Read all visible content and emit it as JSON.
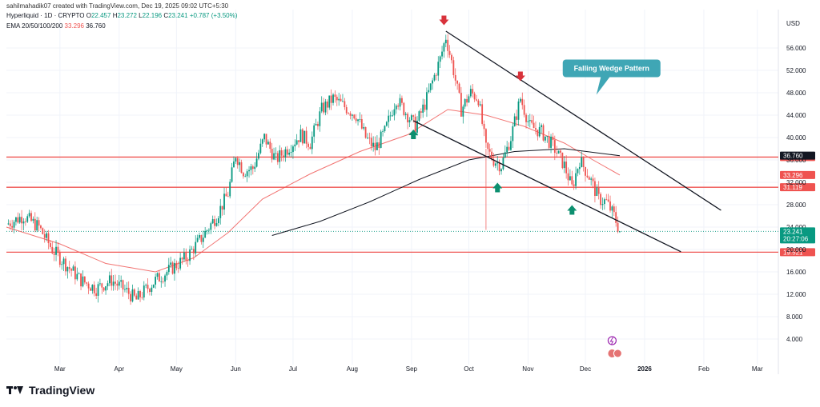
{
  "header": {
    "author_line": "sahilmahadik07 created with TradingView.com, Dec 19, 2025 09:02 UTC+5:30"
  },
  "legend": {
    "symbol": "Hyperliquid · 1D · CRYPTO",
    "o_label": "O",
    "o": "22.457",
    "h_label": "H",
    "h": "23.272",
    "l_label": "L",
    "l": "22.196",
    "c_label": "C",
    "c": "23.241",
    "change": "+0.787 (+3.50%)",
    "ema_label": "EMA 20/50/100/200",
    "ema_1": "33.296",
    "ema_2": "36.760"
  },
  "footer": {
    "brand": "TradingView"
  },
  "colors": {
    "up": "#089981",
    "down": "#ef5350",
    "ema_short": "#ef5350",
    "ema_long": "#131722",
    "support": "#ef5350",
    "callout": "#3fa6b5"
  },
  "chart_data": {
    "type": "candlestick",
    "title": "",
    "currency_label": "USD",
    "ylim": [
      0,
      60
    ],
    "y_ticks": [
      "4.000",
      "8.000",
      "12.000",
      "16.000",
      "20.000",
      "24.000",
      "28.000",
      "32.000",
      "36.000",
      "40.000",
      "44.000",
      "48.000",
      "52.000",
      "56.000"
    ],
    "x_ticks": [
      {
        "label": "Mar",
        "date": "2025-03-01"
      },
      {
        "label": "Apr",
        "date": "2025-04-01"
      },
      {
        "label": "May",
        "date": "2025-05-01"
      },
      {
        "label": "Jun",
        "date": "2025-06-01"
      },
      {
        "label": "Jul",
        "date": "2025-07-01"
      },
      {
        "label": "Aug",
        "date": "2025-08-01"
      },
      {
        "label": "Sep",
        "date": "2025-09-01"
      },
      {
        "label": "Oct",
        "date": "2025-10-01"
      },
      {
        "label": "Nov",
        "date": "2025-11-01"
      },
      {
        "label": "Dec",
        "date": "2025-12-01"
      },
      {
        "label": "2026",
        "date": "2026-01-01"
      },
      {
        "label": "Feb",
        "date": "2026-02-01"
      },
      {
        "label": "Mar",
        "date": "2026-03-01"
      }
    ],
    "price_path": [
      [
        "2025-02-01",
        24.5
      ],
      [
        "2025-02-10",
        26.0
      ],
      [
        "2025-02-18",
        24.0
      ],
      [
        "2025-02-25",
        20.0
      ],
      [
        "2025-03-05",
        17.0
      ],
      [
        "2025-03-12",
        14.5
      ],
      [
        "2025-03-20",
        13.0
      ],
      [
        "2025-03-28",
        14.5
      ],
      [
        "2025-04-05",
        12.5
      ],
      [
        "2025-04-10",
        11.0
      ],
      [
        "2025-04-14",
        12.5
      ],
      [
        "2025-04-20",
        14.5
      ],
      [
        "2025-04-28",
        16.5
      ],
      [
        "2025-05-06",
        18.5
      ],
      [
        "2025-05-14",
        22.0
      ],
      [
        "2025-05-22",
        26.0
      ],
      [
        "2025-05-28",
        30.0
      ],
      [
        "2025-06-01",
        37.0
      ],
      [
        "2025-06-05",
        34.0
      ],
      [
        "2025-06-10",
        34.5
      ],
      [
        "2025-06-16",
        40.0
      ],
      [
        "2025-06-22",
        36.0
      ],
      [
        "2025-06-28",
        38.0
      ],
      [
        "2025-07-05",
        40.5
      ],
      [
        "2025-07-10",
        39.0
      ],
      [
        "2025-07-16",
        45.0
      ],
      [
        "2025-07-22",
        47.0
      ],
      [
        "2025-07-28",
        45.5
      ],
      [
        "2025-08-03",
        44.0
      ],
      [
        "2025-08-08",
        40.0
      ],
      [
        "2025-08-13",
        38.0
      ],
      [
        "2025-08-18",
        41.0
      ],
      [
        "2025-08-24",
        47.0
      ],
      [
        "2025-08-29",
        44.5
      ],
      [
        "2025-09-03",
        42.0
      ],
      [
        "2025-09-08",
        46.0
      ],
      [
        "2025-09-12",
        50.0
      ],
      [
        "2025-09-16",
        54.0
      ],
      [
        "2025-09-19",
        58.0
      ],
      [
        "2025-09-23",
        52.0
      ],
      [
        "2025-09-27",
        45.0
      ],
      [
        "2025-10-02",
        48.0
      ],
      [
        "2025-10-06",
        47.0
      ],
      [
        "2025-10-10",
        38.0
      ],
      [
        "2025-10-14",
        36.0
      ],
      [
        "2025-10-18",
        35.0
      ],
      [
        "2025-10-23",
        40.0
      ],
      [
        "2025-10-28",
        47.0
      ],
      [
        "2025-11-02",
        42.0
      ],
      [
        "2025-11-08",
        41.0
      ],
      [
        "2025-11-14",
        38.5
      ],
      [
        "2025-11-20",
        35.0
      ],
      [
        "2025-11-24",
        31.0
      ],
      [
        "2025-11-28",
        36.0
      ],
      [
        "2025-12-03",
        33.0
      ],
      [
        "2025-12-08",
        29.0
      ],
      [
        "2025-12-12",
        28.5
      ],
      [
        "2025-12-16",
        26.0
      ],
      [
        "2025-12-19",
        23.241
      ]
    ],
    "ema_20_50_100": [
      [
        "2025-02-01",
        24.0
      ],
      [
        "2025-03-01",
        21.0
      ],
      [
        "2025-03-25",
        17.5
      ],
      [
        "2025-04-20",
        16.0
      ],
      [
        "2025-05-10",
        18.5
      ],
      [
        "2025-05-28",
        23.0
      ],
      [
        "2025-06-15",
        29.0
      ],
      [
        "2025-07-10",
        33.5
      ],
      [
        "2025-08-05",
        37.5
      ],
      [
        "2025-08-30",
        40.5
      ],
      [
        "2025-09-20",
        45.0
      ],
      [
        "2025-10-10",
        44.0
      ],
      [
        "2025-10-30",
        42.0
      ],
      [
        "2025-11-20",
        39.0
      ],
      [
        "2025-12-05",
        36.0
      ],
      [
        "2025-12-19",
        33.296
      ]
    ],
    "ema_200": [
      [
        "2025-06-20",
        22.5
      ],
      [
        "2025-07-15",
        25.0
      ],
      [
        "2025-08-10",
        28.5
      ],
      [
        "2025-09-05",
        32.5
      ],
      [
        "2025-10-01",
        36.0
      ],
      [
        "2025-10-25",
        37.5
      ],
      [
        "2025-11-20",
        38.0
      ],
      [
        "2025-12-19",
        36.76
      ]
    ],
    "wedge_upper": [
      [
        "2025-09-19",
        59.0
      ],
      [
        "2026-02-10",
        27.0
      ]
    ],
    "wedge_lower": [
      [
        "2025-09-02",
        43.0
      ],
      [
        "2026-01-20",
        19.6
      ]
    ],
    "support_levels": [
      {
        "value": 36.51,
        "label": "36.510"
      },
      {
        "value": 31.119,
        "label": "31.119"
      },
      {
        "value": 19.521,
        "label": "19.521"
      }
    ],
    "price_badges": [
      {
        "value": 36.76,
        "label": "36.760",
        "style": "dark"
      },
      {
        "value": 33.296,
        "label": "33.296",
        "style": "red"
      },
      {
        "value": 23.241,
        "label": "23.241",
        "sub": "20:27:06",
        "style": "green"
      }
    ],
    "annotation": {
      "text": "Falling Wedge Pattern",
      "date": "2025-11-20",
      "value": 52.5
    },
    "down_arrows": [
      {
        "date": "2025-09-18",
        "value": 60.5
      },
      {
        "date": "2025-10-28",
        "value": 50.5
      }
    ],
    "up_arrows": [
      {
        "date": "2025-09-02",
        "value": 41.0
      },
      {
        "date": "2025-10-16",
        "value": 31.5
      },
      {
        "date": "2025-11-24",
        "value": 27.5
      }
    ],
    "dotted_price": 23.241
  }
}
